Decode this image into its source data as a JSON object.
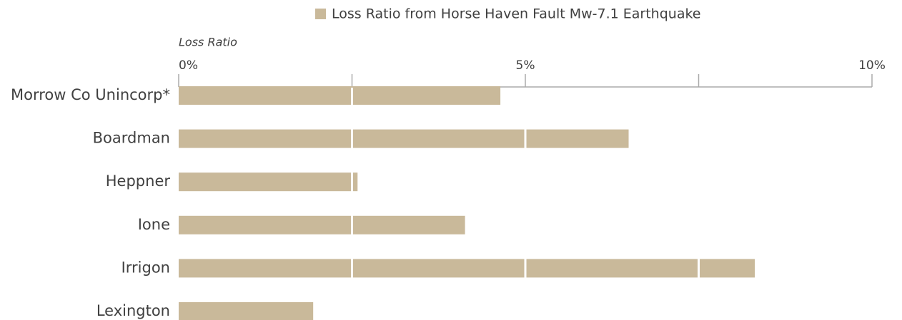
{
  "chart_data": {
    "type": "hbar",
    "legend": "Loss Ratio from Horse Haven Fault Mw-7.1 Earthquake",
    "x_label": "Loss Ratio",
    "categories": [
      "Morrow Co Unincorp*",
      "Boardman",
      "Heppner",
      "Ione",
      "Irrigon",
      "Lexington"
    ],
    "values": [
      4.64,
      6.49,
      2.58,
      4.13,
      8.31,
      1.94
    ],
    "color": "#c9b99a",
    "xlim": [
      0,
      10
    ],
    "xticks": [
      {
        "value": 0,
        "label": "0%"
      },
      {
        "value": 5,
        "label": "5%"
      },
      {
        "value": 10,
        "label": "10%"
      }
    ],
    "minor_xticks": [
      2.5,
      7.5
    ],
    "grid": true,
    "legend_position": "top"
  }
}
